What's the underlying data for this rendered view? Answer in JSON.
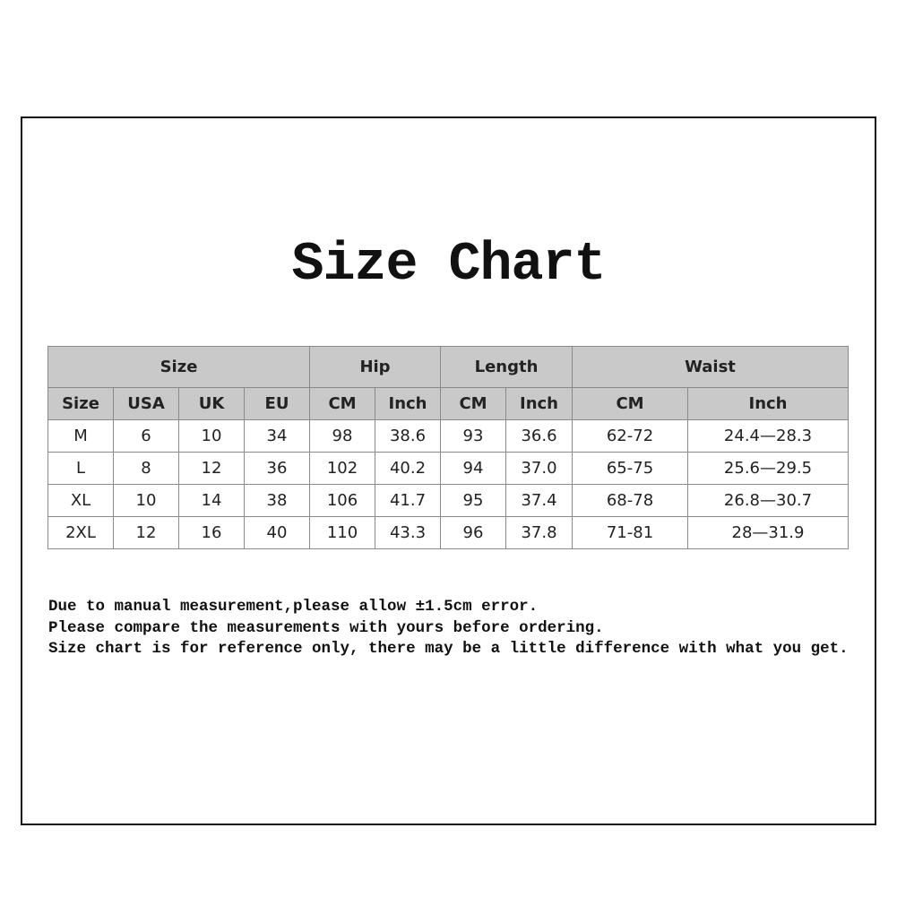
{
  "title": "Size Chart",
  "groups": [
    "Size",
    "Hip",
    "Length",
    "Waist"
  ],
  "subheaders": [
    "Size",
    "USA",
    "UK",
    "EU",
    "CM",
    "Inch",
    "CM",
    "Inch",
    "CM",
    "Inch"
  ],
  "rows": [
    [
      "M",
      "6",
      "10",
      "34",
      "98",
      "38.6",
      "93",
      "36.6",
      "62-72",
      "24.4—28.3"
    ],
    [
      "L",
      "8",
      "12",
      "36",
      "102",
      "40.2",
      "94",
      "37.0",
      "65-75",
      "25.6—29.5"
    ],
    [
      "XL",
      "10",
      "14",
      "38",
      "106",
      "41.7",
      "95",
      "37.4",
      "68-78",
      "26.8—30.7"
    ],
    [
      "2XL",
      "12",
      "16",
      "40",
      "110",
      "43.3",
      "96",
      "37.8",
      "71-81",
      "28—31.9"
    ]
  ],
  "notes": [
    "Due to manual measurement,please allow ±1.5cm error.",
    "Please compare the measurements with yours before ordering.",
    "Size chart is for reference only, there may be a little difference with what you get."
  ]
}
